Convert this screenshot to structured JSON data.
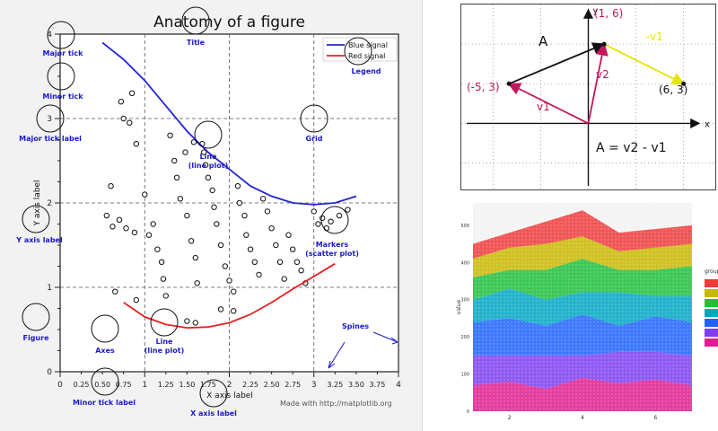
{
  "chart_data": [
    {
      "type": "line",
      "title": "Anatomy of a figure",
      "xlabel": "X axis label",
      "ylabel": "Y axis label",
      "xlim": [
        0,
        4
      ],
      "ylim": [
        0,
        4
      ],
      "grid": true,
      "legend_position": "top-right",
      "x_major_ticks": [
        "0",
        "1",
        "2",
        "3",
        "4"
      ],
      "x_minor_ticks": [
        "0.25",
        "0.50",
        "0.75",
        "1.25",
        "1.50",
        "1.75",
        "2.25",
        "2.50",
        "2.75",
        "3.25",
        "3.50",
        "3.75"
      ],
      "y_major_ticks": [
        "0",
        "1",
        "2",
        "3",
        "4"
      ],
      "series": [
        {
          "name": "Blue signal",
          "color": "#2323d8",
          "x": [
            0.5,
            0.75,
            1.0,
            1.25,
            1.5,
            1.75,
            2.0,
            2.25,
            2.5,
            2.75,
            3.0,
            3.25,
            3.5
          ],
          "y": [
            3.9,
            3.7,
            3.45,
            3.15,
            2.85,
            2.6,
            2.4,
            2.2,
            2.08,
            2.0,
            1.98,
            2.0,
            2.08
          ]
        },
        {
          "name": "Red signal",
          "color": "#e82020",
          "x": [
            0.75,
            1.0,
            1.25,
            1.5,
            1.75,
            2.0,
            2.25,
            2.5,
            2.75,
            3.0,
            3.25
          ],
          "y": [
            0.82,
            0.65,
            0.56,
            0.52,
            0.53,
            0.58,
            0.68,
            0.82,
            0.98,
            1.13,
            1.28
          ]
        }
      ],
      "scatter": [
        [
          0.6,
          2.2
        ],
        [
          0.55,
          1.85
        ],
        [
          0.62,
          1.72
        ],
        [
          0.7,
          1.8
        ],
        [
          0.78,
          1.7
        ],
        [
          0.88,
          1.65
        ],
        [
          1.0,
          2.1
        ],
        [
          0.75,
          3.0
        ],
        [
          0.82,
          2.95
        ],
        [
          0.9,
          2.7
        ],
        [
          0.85,
          3.3
        ],
        [
          0.72,
          3.2
        ],
        [
          1.05,
          1.62
        ],
        [
          1.1,
          1.75
        ],
        [
          1.15,
          1.45
        ],
        [
          1.2,
          1.3
        ],
        [
          1.22,
          1.1
        ],
        [
          1.25,
          0.9
        ],
        [
          1.3,
          2.8
        ],
        [
          1.35,
          2.5
        ],
        [
          1.38,
          2.3
        ],
        [
          1.42,
          2.05
        ],
        [
          1.5,
          1.85
        ],
        [
          1.55,
          1.55
        ],
        [
          1.6,
          1.35
        ],
        [
          1.62,
          1.05
        ],
        [
          1.68,
          2.7
        ],
        [
          1.7,
          2.6
        ],
        [
          1.72,
          2.45
        ],
        [
          1.75,
          2.3
        ],
        [
          1.8,
          2.15
        ],
        [
          1.82,
          1.95
        ],
        [
          1.85,
          1.75
        ],
        [
          1.9,
          1.5
        ],
        [
          1.95,
          1.25
        ],
        [
          2.0,
          1.08
        ],
        [
          2.05,
          0.95
        ],
        [
          2.1,
          2.2
        ],
        [
          2.12,
          2.0
        ],
        [
          2.18,
          1.85
        ],
        [
          2.2,
          1.62
        ],
        [
          2.25,
          1.45
        ],
        [
          2.3,
          1.3
        ],
        [
          2.35,
          1.15
        ],
        [
          2.4,
          2.05
        ],
        [
          2.45,
          1.9
        ],
        [
          2.5,
          1.7
        ],
        [
          2.55,
          1.5
        ],
        [
          2.6,
          1.3
        ],
        [
          2.65,
          1.1
        ],
        [
          2.7,
          1.62
        ],
        [
          2.75,
          1.45
        ],
        [
          2.8,
          1.3
        ],
        [
          2.85,
          1.2
        ],
        [
          2.9,
          1.05
        ],
        [
          3.0,
          1.9
        ],
        [
          3.05,
          1.75
        ],
        [
          3.1,
          1.82
        ],
        [
          3.15,
          1.7
        ],
        [
          3.2,
          1.78
        ],
        [
          3.3,
          1.85
        ],
        [
          3.4,
          1.92
        ],
        [
          0.65,
          0.95
        ],
        [
          0.9,
          0.85
        ],
        [
          1.5,
          0.6
        ],
        [
          1.6,
          0.58
        ],
        [
          1.9,
          0.74
        ],
        [
          2.05,
          0.72
        ],
        [
          1.48,
          2.6
        ],
        [
          1.58,
          2.72
        ]
      ],
      "annotations": [
        {
          "label": "Major tick"
        },
        {
          "label": "Minor tick"
        },
        {
          "label": "Major tick label"
        },
        {
          "label": "Y axis label"
        },
        {
          "label": "Figure"
        },
        {
          "label": "Axes"
        },
        {
          "label": "Line\n(line plot)"
        },
        {
          "label": "Minor tick label"
        },
        {
          "label": "X axis label"
        },
        {
          "label": "Title"
        },
        {
          "label": "Legend"
        },
        {
          "label": "Grid"
        },
        {
          "label": "Line\n(line plot)"
        },
        {
          "label": "Markers\n(scatter plot)"
        },
        {
          "label": "Spines"
        }
      ],
      "footer": "Made with http://matplotlib.org",
      "annotation_color": "#1a1ac8"
    },
    {
      "type": "diagram",
      "title": "",
      "xlabel": "x",
      "ylabel": "y",
      "xlim": [
        -8,
        8
      ],
      "ylim": [
        -5,
        9
      ],
      "points": [
        {
          "label": "(1, 6)",
          "x": 1,
          "y": 6
        },
        {
          "label": "(-5, 3)",
          "x": -5,
          "y": 3
        },
        {
          "label": "(6, 3)",
          "x": 6,
          "y": 3
        }
      ],
      "vectors": [
        {
          "label": "A",
          "from": [
            -5,
            3
          ],
          "to": [
            1,
            6
          ],
          "color": "#111111"
        },
        {
          "label": "v2",
          "from": [
            0,
            0
          ],
          "to": [
            1,
            6
          ],
          "color": "#c2185b"
        },
        {
          "label": "v1",
          "from": [
            0,
            0
          ],
          "to": [
            -5,
            3
          ],
          "color": "#c2185b"
        },
        {
          "label": "-v1",
          "from": [
            1,
            6
          ],
          "to": [
            6,
            3
          ],
          "color": "#e6e600"
        }
      ],
      "equation": "A = v2 - v1",
      "label_color": "#c2185b"
    },
    {
      "type": "area",
      "ylabel": "value",
      "legend_title": "group",
      "legend_position": "right",
      "x": [
        1,
        2,
        3,
        4,
        5,
        6,
        7
      ],
      "x_tick_labels": [
        "2",
        "4",
        "6"
      ],
      "y_tick_labels": [
        "0",
        "100",
        "200",
        "300",
        "400",
        "500"
      ],
      "ylim": [
        0,
        560
      ],
      "series": [
        {
          "color": "#e11d91",
          "values": [
            70,
            80,
            60,
            90,
            75,
            85,
            70
          ]
        },
        {
          "color": "#7e3ff2",
          "values": [
            80,
            70,
            90,
            60,
            85,
            75,
            80
          ]
        },
        {
          "color": "#1e63ff",
          "values": [
            90,
            100,
            80,
            110,
            70,
            95,
            90
          ]
        },
        {
          "color": "#00a7c4",
          "values": [
            60,
            80,
            70,
            60,
            90,
            55,
            70
          ]
        },
        {
          "color": "#1fbf3c",
          "values": [
            60,
            50,
            80,
            90,
            60,
            70,
            80
          ]
        },
        {
          "color": "#c9b800",
          "values": [
            50,
            60,
            70,
            60,
            50,
            60,
            60
          ]
        },
        {
          "color": "#ee3b3b",
          "values": [
            40,
            40,
            60,
            70,
            50,
            50,
            50
          ]
        }
      ]
    }
  ]
}
